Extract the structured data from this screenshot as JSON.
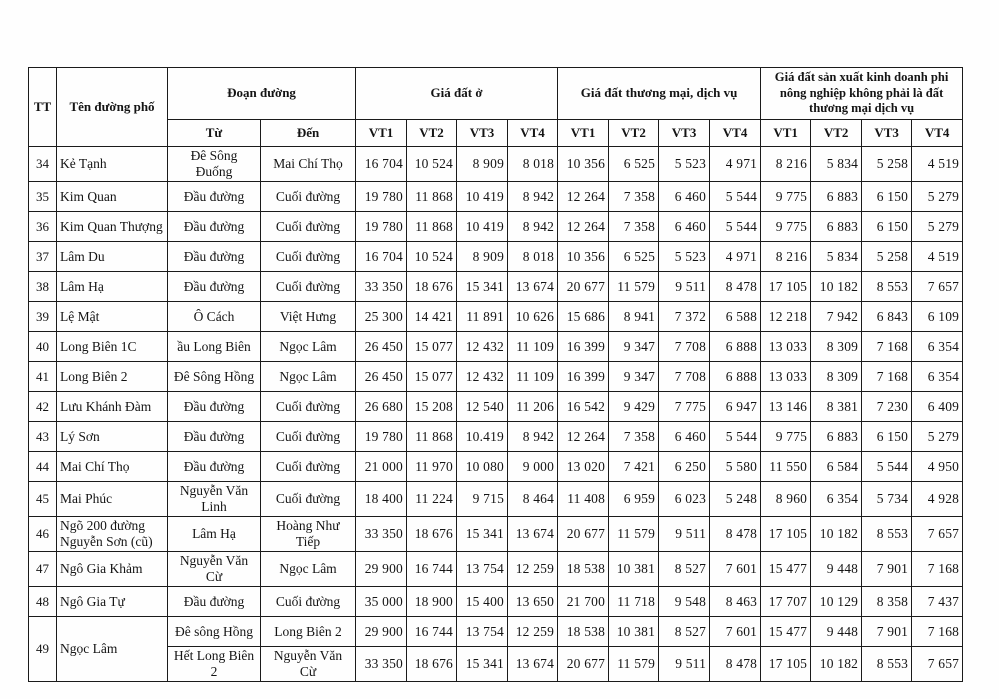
{
  "table": {
    "header": {
      "tt": "TT",
      "street": "Tên đường phố",
      "section": "Đoạn đường",
      "from": "Từ",
      "to": "Đến",
      "group_residential": "Giá đất ở",
      "group_commercial": "Giá đất thương mại, dịch vụ",
      "group_business": "Giá đất sản xuất kinh doanh phi nông nghiệp không phải là đất thương mại dịch vụ",
      "vt": [
        "VT1",
        "VT2",
        "VT3",
        "VT4"
      ]
    },
    "rows": [
      {
        "tt": "34",
        "street": "Kẻ Tạnh",
        "segments": [
          {
            "from": "Đê Sông Đuống",
            "to": "Mai Chí Thọ",
            "values": [
              "16 704",
              "10 524",
              "8 909",
              "8 018",
              "10 356",
              "6 525",
              "5 523",
              "4 971",
              "8 216",
              "5 834",
              "5 258",
              "4 519"
            ]
          }
        ]
      },
      {
        "tt": "35",
        "street": "Kim Quan",
        "segments": [
          {
            "from": "Đầu đường",
            "to": "Cuối đường",
            "values": [
              "19 780",
              "11 868",
              "10 419",
              "8 942",
              "12 264",
              "7 358",
              "6 460",
              "5 544",
              "9 775",
              "6 883",
              "6 150",
              "5 279"
            ]
          }
        ]
      },
      {
        "tt": "36",
        "street": "Kim Quan Thượng",
        "segments": [
          {
            "from": "Đầu đường",
            "to": "Cuối đường",
            "values": [
              "19 780",
              "11 868",
              "10 419",
              "8 942",
              "12 264",
              "7 358",
              "6 460",
              "5 544",
              "9 775",
              "6 883",
              "6 150",
              "5 279"
            ]
          }
        ]
      },
      {
        "tt": "37",
        "street": "Lâm Du",
        "segments": [
          {
            "from": "Đầu đường",
            "to": "Cuối đường",
            "values": [
              "16 704",
              "10 524",
              "8 909",
              "8 018",
              "10 356",
              "6 525",
              "5 523",
              "4 971",
              "8 216",
              "5 834",
              "5 258",
              "4 519"
            ]
          }
        ]
      },
      {
        "tt": "38",
        "street": "Lâm Hạ",
        "segments": [
          {
            "from": "Đầu đường",
            "to": "Cuối đường",
            "values": [
              "33 350",
              "18 676",
              "15 341",
              "13 674",
              "20 677",
              "11 579",
              "9 511",
              "8 478",
              "17 105",
              "10 182",
              "8 553",
              "7 657"
            ]
          }
        ]
      },
      {
        "tt": "39",
        "street": "Lệ Mật",
        "segments": [
          {
            "from": "Ô Cách",
            "to": "Việt Hưng",
            "values": [
              "25 300",
              "14 421",
              "11 891",
              "10 626",
              "15 686",
              "8 941",
              "7 372",
              "6 588",
              "12 218",
              "7 942",
              "6 843",
              "6 109"
            ]
          }
        ]
      },
      {
        "tt": "40",
        "street": "Long Biên 1C",
        "segments": [
          {
            "from": "ầu Long Biên",
            "to": "Ngọc Lâm",
            "values": [
              "26 450",
              "15 077",
              "12 432",
              "11 109",
              "16 399",
              "9 347",
              "7 708",
              "6 888",
              "13 033",
              "8 309",
              "7 168",
              "6 354"
            ]
          }
        ]
      },
      {
        "tt": "41",
        "street": "Long Biên 2",
        "segments": [
          {
            "from": "Đê Sông Hồng",
            "to": "Ngọc Lâm",
            "values": [
              "26 450",
              "15 077",
              "12 432",
              "11 109",
              "16 399",
              "9 347",
              "7 708",
              "6 888",
              "13 033",
              "8 309",
              "7 168",
              "6 354"
            ]
          }
        ]
      },
      {
        "tt": "42",
        "street": "Lưu Khánh Đàm",
        "segments": [
          {
            "from": "Đầu đường",
            "to": "Cuối đường",
            "values": [
              "26 680",
              "15 208",
              "12 540",
              "11 206",
              "16 542",
              "9 429",
              "7 775",
              "6 947",
              "13 146",
              "8 381",
              "7 230",
              "6 409"
            ]
          }
        ]
      },
      {
        "tt": "43",
        "street": "Lý Sơn",
        "segments": [
          {
            "from": "Đầu đường",
            "to": "Cuối đường",
            "values": [
              "19 780",
              "11 868",
              "10.419",
              "8 942",
              "12 264",
              "7 358",
              "6 460",
              "5 544",
              "9 775",
              "6 883",
              "6 150",
              "5 279"
            ]
          }
        ]
      },
      {
        "tt": "44",
        "street": "Mai Chí Thọ",
        "segments": [
          {
            "from": "Đầu đường",
            "to": "Cuối đường",
            "values": [
              "21 000",
              "11 970",
              "10 080",
              "9 000",
              "13 020",
              "7 421",
              "6 250",
              "5 580",
              "11 550",
              "6 584",
              "5 544",
              "4 950"
            ]
          }
        ]
      },
      {
        "tt": "45",
        "street": "Mai Phúc",
        "segments": [
          {
            "from": "Nguyễn Văn Linh",
            "to": "Cuối đường",
            "values": [
              "18 400",
              "11 224",
              "9 715",
              "8 464",
              "11 408",
              "6 959",
              "6 023",
              "5 248",
              "8 960",
              "6 354",
              "5 734",
              "4 928"
            ]
          }
        ]
      },
      {
        "tt": "46",
        "street": "Ngõ 200 đường Nguyễn Sơn (cũ)",
        "segments": [
          {
            "from": "Lâm Hạ",
            "to": "Hoàng Như Tiếp",
            "values": [
              "33 350",
              "18 676",
              "15 341",
              "13 674",
              "20 677",
              "11 579",
              "9 511",
              "8 478",
              "17 105",
              "10 182",
              "8 553",
              "7 657"
            ]
          }
        ]
      },
      {
        "tt": "47",
        "street": "Ngô Gia Khảm",
        "segments": [
          {
            "from": "Nguyễn Văn Cừ",
            "to": "Ngọc Lâm",
            "values": [
              "29 900",
              "16 744",
              "13 754",
              "12 259",
              "18 538",
              "10 381",
              "8 527",
              "7 601",
              "15 477",
              "9 448",
              "7 901",
              "7 168"
            ]
          }
        ]
      },
      {
        "tt": "48",
        "street": "Ngô Gia Tự",
        "segments": [
          {
            "from": "Đầu đường",
            "to": "Cuối đường",
            "values": [
              "35 000",
              "18 900",
              "15 400",
              "13 650",
              "21 700",
              "11 718",
              "9 548",
              "8 463",
              "17 707",
              "10 129",
              "8 358",
              "7 437"
            ]
          }
        ]
      },
      {
        "tt": "49",
        "street": "Ngọc Lâm",
        "segments": [
          {
            "from": "Đê sông Hồng",
            "to": "Long Biên 2",
            "values": [
              "29 900",
              "16 744",
              "13 754",
              "12 259",
              "18 538",
              "10 381",
              "8 527",
              "7 601",
              "15 477",
              "9 448",
              "7 901",
              "7 168"
            ]
          },
          {
            "from": "Hết Long Biên 2",
            "to": "Nguyễn Văn Cừ",
            "values": [
              "33 350",
              "18 676",
              "15 341",
              "13 674",
              "20 677",
              "11 579",
              "9 511",
              "8 478",
              "17 105",
              "10 182",
              "8 553",
              "7 657"
            ]
          }
        ]
      }
    ]
  }
}
